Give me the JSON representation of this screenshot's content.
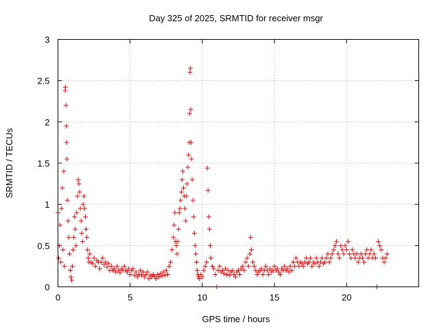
{
  "chart_data": {
    "type": "scatter",
    "title": "Day 325 of 2025, SRMTID for receiver msgr",
    "xlabel": "GPS time / hours",
    "ylabel": "SRMTID / TECUs",
    "xlim": [
      0,
      25
    ],
    "ylim": [
      0,
      3
    ],
    "xticks": [
      0,
      5,
      10,
      15,
      20
    ],
    "xtick_labels": [
      "0",
      "5",
      "10",
      "15",
      "20"
    ],
    "yticks": [
      0,
      0.5,
      1,
      1.5,
      2,
      2.5,
      3
    ],
    "ytick_labels": [
      "0",
      "0.5",
      "1",
      "1.5",
      "2",
      "2.5",
      "3"
    ],
    "grid": true,
    "marker": "plus",
    "color": "#ff0000",
    "series": [
      {
        "name": "msgr",
        "points": [
          [
            0.0,
            0.9
          ],
          [
            0.05,
            0.35
          ],
          [
            0.1,
            0.5
          ],
          [
            0.15,
            0.75
          ],
          [
            0.2,
            0.3
          ],
          [
            0.25,
            0.95
          ],
          [
            0.3,
            1.2
          ],
          [
            0.35,
            0.45
          ],
          [
            0.4,
            1.4
          ],
          [
            0.45,
            0.25
          ],
          [
            0.5,
            2.38
          ],
          [
            0.52,
            2.42
          ],
          [
            0.55,
            2.2
          ],
          [
            0.58,
            1.95
          ],
          [
            0.6,
            1.75
          ],
          [
            0.62,
            1.55
          ],
          [
            0.65,
            1.05
          ],
          [
            0.7,
            0.8
          ],
          [
            0.75,
            0.6
          ],
          [
            0.8,
            0.4
          ],
          [
            0.85,
            0.2
          ],
          [
            0.9,
            0.12
          ],
          [
            0.95,
            0.08
          ],
          [
            1.0,
            0.25
          ],
          [
            1.05,
            0.45
          ],
          [
            1.1,
            0.6
          ],
          [
            1.15,
            0.85
          ],
          [
            1.2,
            0.7
          ],
          [
            1.25,
            0.5
          ],
          [
            1.3,
            0.9
          ],
          [
            1.35,
            1.1
          ],
          [
            1.4,
            1.3
          ],
          [
            1.45,
            1.25
          ],
          [
            1.5,
            1.15
          ],
          [
            1.55,
            0.95
          ],
          [
            1.6,
            0.8
          ],
          [
            1.65,
            0.65
          ],
          [
            1.7,
            0.55
          ],
          [
            1.75,
            1.0
          ],
          [
            1.8,
            1.1
          ],
          [
            1.85,
            0.95
          ],
          [
            1.9,
            0.85
          ],
          [
            1.95,
            0.7
          ],
          [
            2.0,
            0.6
          ],
          [
            2.05,
            0.45
          ],
          [
            2.1,
            0.35
          ],
          [
            2.15,
            0.3
          ],
          [
            2.2,
            0.4
          ],
          [
            2.3,
            0.3
          ],
          [
            2.4,
            0.28
          ],
          [
            2.5,
            0.35
          ],
          [
            2.6,
            0.25
          ],
          [
            2.7,
            0.32
          ],
          [
            2.8,
            0.3
          ],
          [
            2.9,
            0.22
          ],
          [
            3.0,
            0.3
          ],
          [
            3.1,
            0.35
          ],
          [
            3.2,
            0.27
          ],
          [
            3.3,
            0.3
          ],
          [
            3.4,
            0.24
          ],
          [
            3.5,
            0.28
          ],
          [
            3.6,
            0.2
          ],
          [
            3.7,
            0.25
          ],
          [
            3.8,
            0.2
          ],
          [
            3.9,
            0.22
          ],
          [
            4.0,
            0.18
          ],
          [
            4.1,
            0.25
          ],
          [
            4.2,
            0.2
          ],
          [
            4.3,
            0.17
          ],
          [
            4.4,
            0.22
          ],
          [
            4.5,
            0.2
          ],
          [
            4.6,
            0.25
          ],
          [
            4.7,
            0.2
          ],
          [
            4.8,
            0.18
          ],
          [
            4.9,
            0.22
          ],
          [
            5.0,
            0.15
          ],
          [
            5.1,
            0.2
          ],
          [
            5.2,
            0.22
          ],
          [
            5.3,
            0.14
          ],
          [
            5.4,
            0.18
          ],
          [
            5.5,
            0.12
          ],
          [
            5.6,
            0.15
          ],
          [
            5.7,
            0.2
          ],
          [
            5.8,
            0.14
          ],
          [
            5.9,
            0.18
          ],
          [
            6.0,
            0.12
          ],
          [
            6.1,
            0.15
          ],
          [
            6.2,
            0.18
          ],
          [
            6.3,
            0.1
          ],
          [
            6.4,
            0.14
          ],
          [
            6.5,
            0.12
          ],
          [
            6.6,
            0.15
          ],
          [
            6.7,
            0.13
          ],
          [
            6.8,
            0.1
          ],
          [
            6.9,
            0.15
          ],
          [
            7.0,
            0.12
          ],
          [
            7.1,
            0.16
          ],
          [
            7.2,
            0.13
          ],
          [
            7.3,
            0.18
          ],
          [
            7.4,
            0.14
          ],
          [
            7.5,
            0.2
          ],
          [
            7.6,
            0.15
          ],
          [
            7.7,
            0.25
          ],
          [
            7.8,
            0.3
          ],
          [
            7.9,
            0.45
          ],
          [
            8.0,
            0.6
          ],
          [
            8.05,
            0.75
          ],
          [
            8.1,
            0.9
          ],
          [
            8.15,
            0.55
          ],
          [
            8.2,
            0.5
          ],
          [
            8.25,
            0.4
          ],
          [
            8.3,
            0.55
          ],
          [
            8.35,
            0.7
          ],
          [
            8.4,
            0.9
          ],
          [
            8.45,
            0.95
          ],
          [
            8.5,
            1.05
          ],
          [
            8.55,
            1.15
          ],
          [
            8.6,
            1.3
          ],
          [
            8.65,
            1.4
          ],
          [
            8.7,
            1.2
          ],
          [
            8.75,
            1.1
          ],
          [
            8.8,
            0.95
          ],
          [
            8.85,
            0.8
          ],
          [
            8.9,
            1.1
          ],
          [
            8.95,
            1.25
          ],
          [
            9.0,
            1.45
          ],
          [
            9.05,
            1.6
          ],
          [
            9.1,
            1.75
          ],
          [
            9.12,
            2.1
          ],
          [
            9.15,
            2.6
          ],
          [
            9.18,
            2.65
          ],
          [
            9.2,
            2.15
          ],
          [
            9.22,
            1.75
          ],
          [
            9.25,
            1.55
          ],
          [
            9.3,
            1.3
          ],
          [
            9.35,
            1.05
          ],
          [
            9.4,
            0.85
          ],
          [
            9.45,
            0.65
          ],
          [
            9.5,
            0.5
          ],
          [
            9.55,
            0.4
          ],
          [
            9.6,
            0.3
          ],
          [
            9.65,
            0.2
          ],
          [
            9.7,
            0.15
          ],
          [
            9.75,
            0.12
          ],
          [
            9.8,
            0.1
          ],
          [
            9.9,
            0.15
          ],
          [
            10.0,
            0.12
          ],
          [
            10.1,
            0.2
          ],
          [
            10.2,
            0.25
          ],
          [
            10.3,
            0.3
          ],
          [
            10.35,
            1.44
          ],
          [
            10.4,
            1.17
          ],
          [
            10.45,
            0.85
          ],
          [
            10.5,
            0.7
          ],
          [
            10.55,
            0.5
          ],
          [
            10.6,
            0.35
          ],
          [
            10.7,
            0.25
          ],
          [
            10.8,
            0.22
          ],
          [
            10.9,
            0.15
          ],
          [
            11.0,
            0.0
          ],
          [
            11.1,
            0.2
          ],
          [
            11.2,
            0.25
          ],
          [
            11.3,
            0.18
          ],
          [
            11.4,
            0.2
          ],
          [
            11.5,
            0.16
          ],
          [
            11.6,
            0.22
          ],
          [
            11.7,
            0.15
          ],
          [
            11.8,
            0.2
          ],
          [
            11.9,
            0.14
          ],
          [
            12.0,
            0.18
          ],
          [
            12.1,
            0.2
          ],
          [
            12.2,
            0.15
          ],
          [
            12.3,
            0.12
          ],
          [
            12.4,
            0.18
          ],
          [
            12.5,
            0.2
          ],
          [
            12.6,
            0.15
          ],
          [
            12.7,
            0.22
          ],
          [
            12.8,
            0.25
          ],
          [
            12.9,
            0.2
          ],
          [
            13.0,
            0.3
          ],
          [
            13.1,
            0.35
          ],
          [
            13.2,
            0.25
          ],
          [
            13.3,
            0.4
          ],
          [
            13.35,
            0.6
          ],
          [
            13.4,
            0.45
          ],
          [
            13.5,
            0.3
          ],
          [
            13.6,
            0.25
          ],
          [
            13.7,
            0.2
          ],
          [
            13.8,
            0.15
          ],
          [
            13.9,
            0.18
          ],
          [
            14.0,
            0.2
          ],
          [
            14.1,
            0.22
          ],
          [
            14.2,
            0.15
          ],
          [
            14.3,
            0.2
          ],
          [
            14.4,
            0.25
          ],
          [
            14.5,
            0.2
          ],
          [
            14.6,
            0.15
          ],
          [
            14.7,
            0.22
          ],
          [
            14.8,
            0.18
          ],
          [
            14.9,
            0.2
          ],
          [
            15.0,
            0.25
          ],
          [
            15.1,
            0.2
          ],
          [
            15.2,
            0.22
          ],
          [
            15.3,
            0.18
          ],
          [
            15.4,
            0.15
          ],
          [
            15.5,
            0.22
          ],
          [
            15.6,
            0.2
          ],
          [
            15.7,
            0.25
          ],
          [
            15.8,
            0.2
          ],
          [
            15.9,
            0.22
          ],
          [
            16.0,
            0.18
          ],
          [
            16.1,
            0.25
          ],
          [
            16.2,
            0.2
          ],
          [
            16.3,
            0.3
          ],
          [
            16.4,
            0.25
          ],
          [
            16.5,
            0.35
          ],
          [
            16.6,
            0.3
          ],
          [
            16.7,
            0.25
          ],
          [
            16.8,
            0.3
          ],
          [
            16.9,
            0.28
          ],
          [
            17.0,
            0.25
          ],
          [
            17.1,
            0.3
          ],
          [
            17.2,
            0.35
          ],
          [
            17.3,
            0.28
          ],
          [
            17.4,
            0.3
          ],
          [
            17.5,
            0.35
          ],
          [
            17.6,
            0.25
          ],
          [
            17.7,
            0.3
          ],
          [
            17.8,
            0.28
          ],
          [
            17.9,
            0.35
          ],
          [
            18.0,
            0.3
          ],
          [
            18.1,
            0.25
          ],
          [
            18.2,
            0.3
          ],
          [
            18.3,
            0.35
          ],
          [
            18.4,
            0.28
          ],
          [
            18.5,
            0.3
          ],
          [
            18.6,
            0.35
          ],
          [
            18.7,
            0.4
          ],
          [
            18.8,
            0.3
          ],
          [
            18.9,
            0.35
          ],
          [
            19.0,
            0.4
          ],
          [
            19.1,
            0.45
          ],
          [
            19.2,
            0.5
          ],
          [
            19.3,
            0.55
          ],
          [
            19.4,
            0.4
          ],
          [
            19.5,
            0.35
          ],
          [
            19.6,
            0.5
          ],
          [
            19.7,
            0.45
          ],
          [
            19.8,
            0.4
          ],
          [
            19.9,
            0.5
          ],
          [
            20.0,
            0.45
          ],
          [
            20.1,
            0.55
          ],
          [
            20.2,
            0.4
          ],
          [
            20.3,
            0.35
          ],
          [
            20.4,
            0.45
          ],
          [
            20.5,
            0.4
          ],
          [
            20.6,
            0.35
          ],
          [
            20.7,
            0.4
          ],
          [
            20.8,
            0.3
          ],
          [
            20.9,
            0.35
          ],
          [
            21.0,
            0.4
          ],
          [
            21.1,
            0.35
          ],
          [
            21.2,
            0.3
          ],
          [
            21.3,
            0.4
          ],
          [
            21.4,
            0.45
          ],
          [
            21.5,
            0.35
          ],
          [
            21.6,
            0.4
          ],
          [
            21.7,
            0.45
          ],
          [
            21.8,
            0.35
          ],
          [
            21.9,
            0.4
          ],
          [
            22.0,
            0.35
          ],
          [
            22.1,
            0.0
          ],
          [
            22.2,
            0.55
          ],
          [
            22.3,
            0.5
          ],
          [
            22.4,
            0.45
          ],
          [
            22.5,
            0.35
          ],
          [
            22.6,
            0.3
          ],
          [
            22.7,
            0.35
          ],
          [
            22.8,
            0.4
          ]
        ]
      }
    ]
  }
}
